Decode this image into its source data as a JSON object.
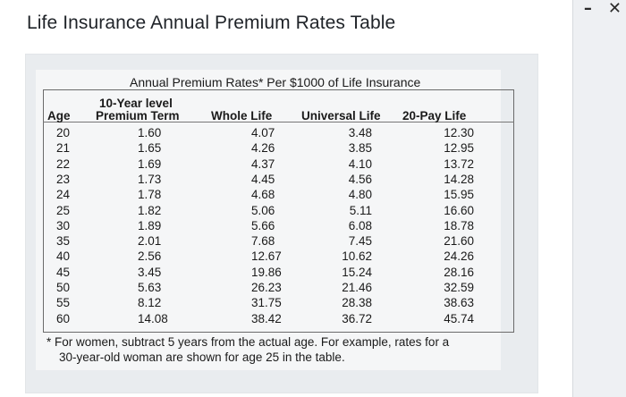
{
  "window": {
    "title": "Life Insurance Annual Premium Rates Table",
    "minimize_glyph": "–",
    "close_glyph": "✕"
  },
  "table": {
    "caption": "Annual Premium Rates* Per $1000 of Life Insurance",
    "headers": {
      "age": "Age",
      "term_line1": "10-Year level",
      "term_line2": "Premium Term",
      "whole": "Whole Life",
      "universal": "Universal Life",
      "pay20": "20-Pay Life"
    },
    "rows": [
      {
        "age": "20",
        "term": "1.60",
        "whole": "4.07",
        "universal": "3.48",
        "pay20": "12.30"
      },
      {
        "age": "21",
        "term": "1.65",
        "whole": "4.26",
        "universal": "3.85",
        "pay20": "12.95"
      },
      {
        "age": "22",
        "term": "1.69",
        "whole": "4.37",
        "universal": "4.10",
        "pay20": "13.72"
      },
      {
        "age": "23",
        "term": "1.73",
        "whole": "4.45",
        "universal": "4.56",
        "pay20": "14.28"
      },
      {
        "age": "24",
        "term": "1.78",
        "whole": "4.68",
        "universal": "4.80",
        "pay20": "15.95"
      },
      {
        "age": "25",
        "term": "1.82",
        "whole": "5.06",
        "universal": "5.11",
        "pay20": "16.60"
      },
      {
        "age": "30",
        "term": "1.89",
        "whole": "5.66",
        "universal": "6.08",
        "pay20": "18.78"
      },
      {
        "age": "35",
        "term": "2.01",
        "whole": "7.68",
        "universal": "7.45",
        "pay20": "21.60"
      },
      {
        "age": "40",
        "term": "2.56",
        "whole": "12.67",
        "universal": "10.62",
        "pay20": "24.26"
      },
      {
        "age": "45",
        "term": "3.45",
        "whole": "19.86",
        "universal": "15.24",
        "pay20": "28.16"
      },
      {
        "age": "50",
        "term": "5.63",
        "whole": "26.23",
        "universal": "21.46",
        "pay20": "32.59"
      },
      {
        "age": "55",
        "term": "8.12",
        "whole": "31.75",
        "universal": "28.38",
        "pay20": "38.63"
      },
      {
        "age": "60",
        "term": "14.08",
        "whole": "38.42",
        "universal": "36.72",
        "pay20": "45.74"
      }
    ],
    "footnote_line1": "* For women, subtract 5 years from the actual age. For example, rates for a",
    "footnote_line2": "30-year-old woman are shown for age 25 in the table."
  }
}
